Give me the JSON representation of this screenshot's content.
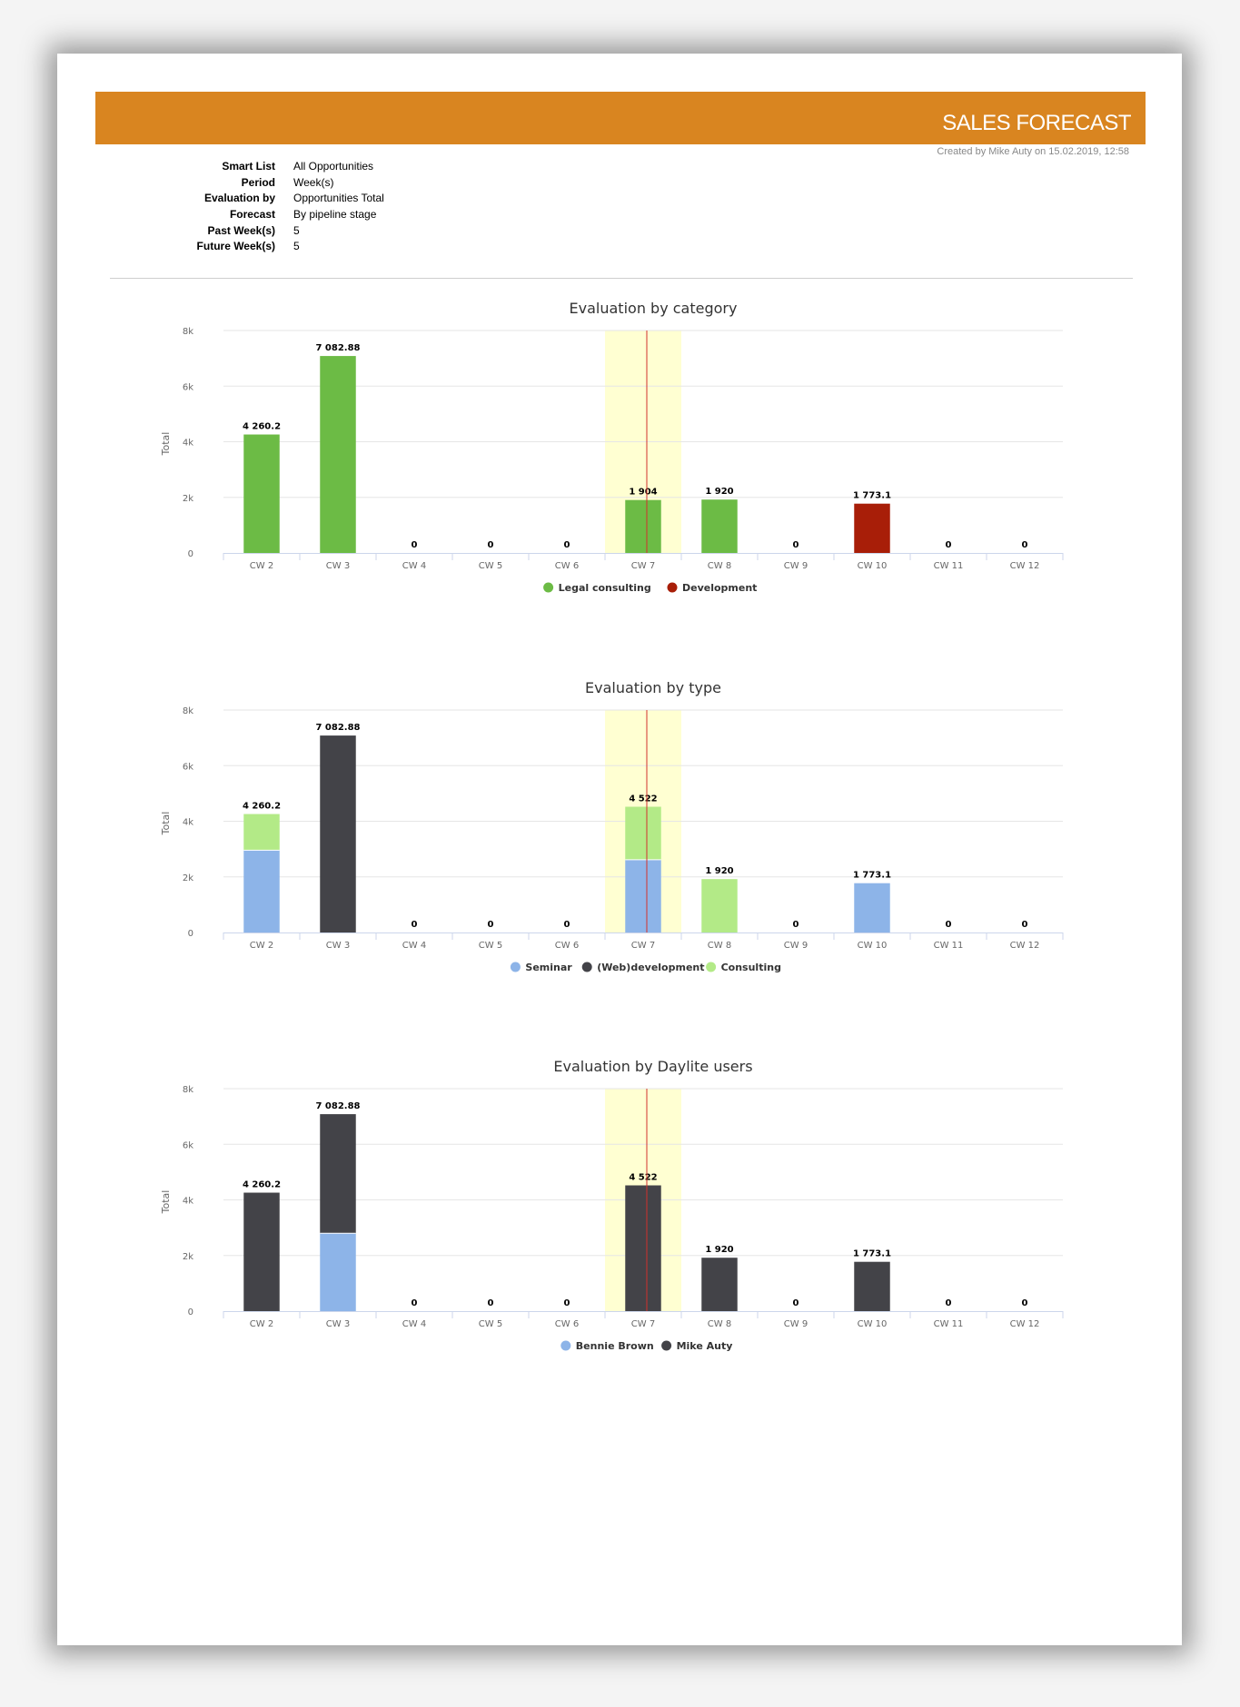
{
  "header": {
    "title": "SALES FORECAST",
    "created": "Created by Mike Auty on 15.02.2019, 12:58"
  },
  "params": [
    {
      "label": "Smart List",
      "value": "All Opportunities"
    },
    {
      "label": "Period",
      "value": "Week(s)"
    },
    {
      "label": "Evaluation by",
      "value": "Opportunities Total"
    },
    {
      "label": "Forecast",
      "value": "By pipeline stage"
    },
    {
      "label": "Past Week(s)",
      "value": "5"
    },
    {
      "label": "Future Week(s)",
      "value": "5"
    }
  ],
  "chart_data": [
    {
      "type": "bar",
      "stacked": true,
      "title": "Evaluation by category",
      "ylabel": "Total",
      "xlabel": "",
      "ylim": [
        0,
        8000
      ],
      "yticks": [
        "0",
        "2k",
        "4k",
        "6k",
        "8k"
      ],
      "categories": [
        "CW 2",
        "CW 3",
        "CW 4",
        "CW 5",
        "CW 6",
        "CW 7",
        "CW 8",
        "CW 9",
        "CW 10",
        "CW 11",
        "CW 12"
      ],
      "totals": [
        "4 260.2",
        "7 082.88",
        "0",
        "0",
        "0",
        "1 904",
        "1 920",
        "0",
        "1 773.1",
        "0",
        "0"
      ],
      "highlight": {
        "category": "CW 7",
        "color": "#ffffd2",
        "line_color": "#d2322d"
      },
      "legend_position": "bottom-center",
      "grid": true,
      "series": [
        {
          "name": "Legal consulting",
          "color": "#6cbb45",
          "values": [
            4260.2,
            7082.88,
            0,
            0,
            0,
            1904,
            1920,
            0,
            0,
            0,
            0
          ]
        },
        {
          "name": "Development",
          "color": "#a81e08",
          "values": [
            0,
            0,
            0,
            0,
            0,
            0,
            0,
            0,
            1773.1,
            0,
            0
          ]
        }
      ]
    },
    {
      "type": "bar",
      "stacked": true,
      "title": "Evaluation by type",
      "ylabel": "Total",
      "xlabel": "",
      "ylim": [
        0,
        8000
      ],
      "yticks": [
        "0",
        "2k",
        "4k",
        "6k",
        "8k"
      ],
      "categories": [
        "CW 2",
        "CW 3",
        "CW 4",
        "CW 5",
        "CW 6",
        "CW 7",
        "CW 8",
        "CW 9",
        "CW 10",
        "CW 11",
        "CW 12"
      ],
      "totals": [
        "4 260.2",
        "7 082.88",
        "0",
        "0",
        "0",
        "4 522",
        "1 920",
        "0",
        "1 773.1",
        "0",
        "0"
      ],
      "highlight": {
        "category": "CW 7",
        "color": "#ffffd2",
        "line_color": "#d2322d"
      },
      "legend_position": "bottom-center",
      "grid": true,
      "series": [
        {
          "name": "Seminar",
          "color": "#8db4e8",
          "values": [
            2960.2,
            0,
            0,
            0,
            0,
            2618,
            0,
            0,
            1773.1,
            0,
            0
          ]
        },
        {
          "name": "(Web)development",
          "color": "#434348",
          "values": [
            0,
            7082.88,
            0,
            0,
            0,
            0,
            0,
            0,
            0,
            0,
            0
          ]
        },
        {
          "name": "Consulting",
          "color": "#b3ea87",
          "values": [
            1300,
            0,
            0,
            0,
            0,
            1904,
            1920,
            0,
            0,
            0,
            0
          ]
        }
      ]
    },
    {
      "type": "bar",
      "stacked": true,
      "title": "Evaluation by Daylite users",
      "ylabel": "Total",
      "xlabel": "",
      "ylim": [
        0,
        8000
      ],
      "yticks": [
        "0",
        "2k",
        "4k",
        "6k",
        "8k"
      ],
      "categories": [
        "CW 2",
        "CW 3",
        "CW 4",
        "CW 5",
        "CW 6",
        "CW 7",
        "CW 8",
        "CW 9",
        "CW 10",
        "CW 11",
        "CW 12"
      ],
      "totals": [
        "4 260.2",
        "7 082.88",
        "0",
        "0",
        "0",
        "4 522",
        "1 920",
        "0",
        "1 773.1",
        "0",
        "0"
      ],
      "highlight": {
        "category": "CW 7",
        "color": "#ffffd2",
        "line_color": "#d2322d"
      },
      "legend_position": "bottom-center",
      "grid": true,
      "series": [
        {
          "name": "Bennie Brown",
          "color": "#8db4e8",
          "values": [
            0,
            2800,
            0,
            0,
            0,
            0,
            0,
            0,
            0,
            0,
            0
          ]
        },
        {
          "name": "Mike Auty",
          "color": "#434348",
          "values": [
            4260.2,
            4282.88,
            0,
            0,
            0,
            4522,
            1920,
            0,
            1773.1,
            0,
            0
          ]
        }
      ]
    }
  ]
}
